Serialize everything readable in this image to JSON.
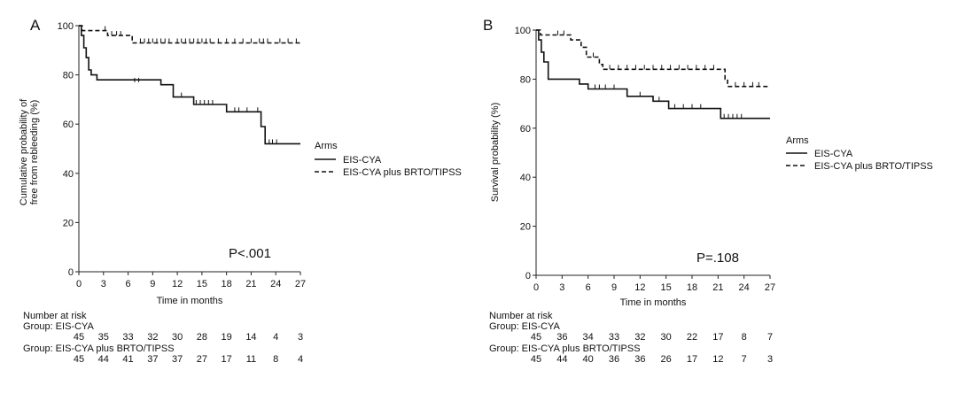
{
  "chart_data": [
    {
      "type": "line",
      "subtype": "kaplan-meier",
      "panel": "A",
      "title": "",
      "xlabel": "Time in months",
      "ylabel": "Cumulative probability of free from rebleeding (%)",
      "ylabel_lines": [
        "Cumulative probability of",
        "free from rebleeding (%)"
      ],
      "xlim": [
        0,
        27
      ],
      "ylim": [
        0,
        100
      ],
      "xticks": [
        0,
        3,
        6,
        9,
        12,
        15,
        18,
        21,
        24,
        27
      ],
      "yticks": [
        0,
        20,
        40,
        60,
        80,
        100
      ],
      "legend": {
        "title": "Arms",
        "position": "right"
      },
      "annotation": "P<.001",
      "series": [
        {
          "name": "EIS-CYA",
          "style": "solid",
          "steps": [
            [
              0,
              100
            ],
            [
              0.3,
              96
            ],
            [
              0.6,
              91
            ],
            [
              0.9,
              87
            ],
            [
              1.2,
              82
            ],
            [
              1.5,
              80
            ],
            [
              2.2,
              78
            ],
            [
              10,
              76
            ],
            [
              11.5,
              71
            ],
            [
              14,
              68
            ],
            [
              18,
              65
            ],
            [
              22.2,
              59
            ],
            [
              22.7,
              52
            ],
            [
              27,
              52
            ]
          ],
          "censored": [
            [
              6.8,
              77
            ],
            [
              7.3,
              77
            ],
            [
              12.5,
              71
            ],
            [
              14.3,
              68
            ],
            [
              14.8,
              68
            ],
            [
              15.3,
              68
            ],
            [
              15.8,
              68
            ],
            [
              16.3,
              68
            ],
            [
              19,
              65
            ],
            [
              19.5,
              65
            ],
            [
              20.5,
              65
            ],
            [
              21.8,
              65
            ],
            [
              23.2,
              52
            ],
            [
              23.6,
              52
            ],
            [
              24.1,
              52
            ]
          ]
        },
        {
          "name": "EIS-CYA plus BRTO/TIPSS",
          "style": "dashed",
          "steps": [
            [
              0,
              100
            ],
            [
              0.4,
              98
            ],
            [
              3.5,
              96
            ],
            [
              6.5,
              93
            ],
            [
              27,
              93
            ]
          ],
          "censored": [
            [
              3.2,
              98
            ],
            [
              4,
              96
            ],
            [
              4.6,
              96
            ],
            [
              5.1,
              96
            ],
            [
              7.5,
              93
            ],
            [
              8,
              93
            ],
            [
              8.5,
              93
            ],
            [
              9,
              93
            ],
            [
              9.5,
              93
            ],
            [
              10,
              93
            ],
            [
              10.5,
              93
            ],
            [
              11,
              93
            ],
            [
              12,
              93
            ],
            [
              12.5,
              93
            ],
            [
              13,
              93
            ],
            [
              13.5,
              93
            ],
            [
              14,
              93
            ],
            [
              14.5,
              93
            ],
            [
              15,
              93
            ],
            [
              15.5,
              93
            ],
            [
              16,
              93
            ],
            [
              17,
              93
            ],
            [
              18,
              93
            ],
            [
              19,
              93
            ],
            [
              20,
              93
            ],
            [
              21,
              93
            ],
            [
              22,
              93
            ],
            [
              22.5,
              93
            ],
            [
              23,
              93
            ],
            [
              24.5,
              93
            ],
            [
              25.5,
              93
            ],
            [
              26.5,
              93
            ]
          ]
        }
      ],
      "risk_table": {
        "header": "Number at risk",
        "groups": [
          {
            "label": "Group: EIS-CYA",
            "counts": [
              "45",
              "35",
              "33",
              "32",
              "30",
              "28",
              "19",
              "14",
              "4",
              "3"
            ]
          },
          {
            "label": "Group: EIS-CYA plus BRTO/TIPSS",
            "counts": [
              "45",
              "44",
              "41",
              "37",
              "37",
              "27",
              "17",
              "11",
              "8",
              "4"
            ]
          }
        ]
      }
    },
    {
      "type": "line",
      "subtype": "kaplan-meier",
      "panel": "B",
      "title": "",
      "xlabel": "Time in months",
      "ylabel": "Survival probability (%)",
      "ylabel_lines": [
        "Survival probability (%)"
      ],
      "xlim": [
        0,
        27
      ],
      "ylim": [
        0,
        100
      ],
      "xticks": [
        0,
        3,
        6,
        9,
        12,
        15,
        18,
        21,
        24,
        27
      ],
      "yticks": [
        0,
        20,
        40,
        60,
        80,
        100
      ],
      "legend": {
        "title": "Arms",
        "position": "right"
      },
      "annotation": "P=.108",
      "series": [
        {
          "name": "EIS-CYA",
          "style": "solid",
          "steps": [
            [
              0,
              100
            ],
            [
              0.3,
              96
            ],
            [
              0.6,
              91
            ],
            [
              0.9,
              87
            ],
            [
              1.4,
              80
            ],
            [
              5,
              78
            ],
            [
              6,
              76
            ],
            [
              10.5,
              73
            ],
            [
              13.5,
              71
            ],
            [
              15.3,
              68
            ],
            [
              21.3,
              64
            ],
            [
              27,
              64
            ]
          ],
          "censored": [
            [
              6.8,
              76
            ],
            [
              7.3,
              76
            ],
            [
              8,
              76
            ],
            [
              9,
              76
            ],
            [
              12,
              73
            ],
            [
              14.2,
              71
            ],
            [
              16,
              68
            ],
            [
              17,
              68
            ],
            [
              18,
              68
            ],
            [
              19,
              68
            ],
            [
              21.7,
              64
            ],
            [
              22.2,
              64
            ],
            [
              22.7,
              64
            ],
            [
              23.2,
              64
            ],
            [
              23.7,
              64
            ]
          ]
        },
        {
          "name": "EIS-CYA plus BRTO/TIPSS",
          "style": "dashed",
          "steps": [
            [
              0,
              100
            ],
            [
              0.5,
              98
            ],
            [
              4,
              96
            ],
            [
              5.2,
              93
            ],
            [
              5.8,
              89
            ],
            [
              7.3,
              86
            ],
            [
              7.7,
              84
            ],
            [
              21.8,
              80
            ],
            [
              22.1,
              77
            ],
            [
              27,
              77
            ]
          ],
          "censored": [
            [
              2.5,
              98
            ],
            [
              3.2,
              98
            ],
            [
              6.6,
              89
            ],
            [
              8.5,
              84
            ],
            [
              9.5,
              84
            ],
            [
              10.5,
              84
            ],
            [
              11.5,
              84
            ],
            [
              12.5,
              84
            ],
            [
              13.5,
              84
            ],
            [
              14.5,
              84
            ],
            [
              15.5,
              84
            ],
            [
              16.5,
              84
            ],
            [
              17.5,
              84
            ],
            [
              18.5,
              84
            ],
            [
              19.5,
              84
            ],
            [
              20.5,
              84
            ],
            [
              23,
              77
            ],
            [
              24,
              77
            ],
            [
              25,
              77
            ],
            [
              25.7,
              77
            ]
          ]
        }
      ],
      "risk_table": {
        "header": "Number at risk",
        "groups": [
          {
            "label": "Group: EIS-CYA",
            "counts": [
              "45",
              "36",
              "34",
              "33",
              "32",
              "30",
              "22",
              "17",
              "8",
              "7"
            ]
          },
          {
            "label": "Group: EIS-CYA plus BRTO/TIPSS",
            "counts": [
              "45",
              "44",
              "40",
              "36",
              "36",
              "26",
              "17",
              "12",
              "7",
              "3"
            ]
          }
        ]
      }
    }
  ]
}
